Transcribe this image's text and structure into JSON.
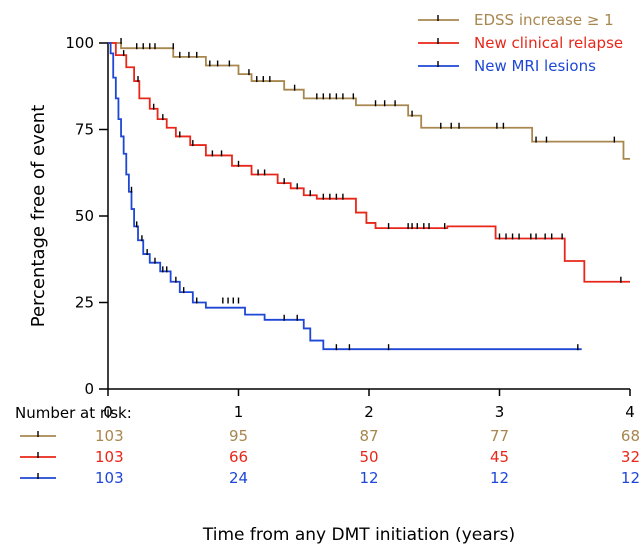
{
  "chart_data": {
    "type": "line",
    "subtype": "kaplan-meier",
    "xlabel": "Time from any DMT initiation (years)",
    "ylabel": "Percentage free of event",
    "xlim": [
      0,
      4
    ],
    "ylim": [
      0,
      100
    ],
    "x_ticks": [
      0,
      1,
      2,
      3,
      4
    ],
    "y_ticks": [
      0,
      25,
      50,
      75,
      100
    ],
    "grid": false,
    "legend_position": "top-right",
    "series": [
      {
        "name": "EDSS increase ≥ 1",
        "color": "#a8874f",
        "steps": [
          [
            0,
            100
          ],
          [
            0.1,
            98.5
          ],
          [
            0.5,
            96
          ],
          [
            0.75,
            93.5
          ],
          [
            1,
            91
          ],
          [
            1.1,
            89
          ],
          [
            1.35,
            86.5
          ],
          [
            1.5,
            84
          ],
          [
            1.9,
            82
          ],
          [
            2.3,
            79
          ],
          [
            2.4,
            75.5
          ],
          [
            3.25,
            71.5
          ],
          [
            3.95,
            66.5
          ],
          [
            4.0,
            66.5
          ]
        ],
        "censors": [
          [
            0.1,
            100
          ],
          [
            0.22,
            98.5
          ],
          [
            0.27,
            98.5
          ],
          [
            0.32,
            98.5
          ],
          [
            0.36,
            98.5
          ],
          [
            0.5,
            98.5
          ],
          [
            0.55,
            96
          ],
          [
            0.62,
            96
          ],
          [
            0.68,
            96
          ],
          [
            0.78,
            93.5
          ],
          [
            0.84,
            93.5
          ],
          [
            0.93,
            93.5
          ],
          [
            1.08,
            91
          ],
          [
            1.14,
            89
          ],
          [
            1.19,
            89
          ],
          [
            1.24,
            89
          ],
          [
            1.43,
            86.5
          ],
          [
            1.6,
            84
          ],
          [
            1.65,
            84
          ],
          [
            1.7,
            84
          ],
          [
            1.75,
            84
          ],
          [
            1.8,
            84
          ],
          [
            1.88,
            84
          ],
          [
            2.05,
            82
          ],
          [
            2.12,
            82
          ],
          [
            2.2,
            82
          ],
          [
            2.33,
            79
          ],
          [
            2.55,
            75.5
          ],
          [
            2.63,
            75.5
          ],
          [
            2.69,
            75.5
          ],
          [
            2.98,
            75.5
          ],
          [
            3.03,
            75.5
          ],
          [
            3.28,
            71.5
          ],
          [
            3.36,
            71.5
          ],
          [
            3.88,
            71.5
          ]
        ]
      },
      {
        "name": "New clinical relapse",
        "color": "#e8271a",
        "steps": [
          [
            0,
            100
          ],
          [
            0.06,
            96.5
          ],
          [
            0.14,
            93
          ],
          [
            0.2,
            89
          ],
          [
            0.24,
            84
          ],
          [
            0.32,
            81
          ],
          [
            0.38,
            78
          ],
          [
            0.45,
            75.5
          ],
          [
            0.52,
            73
          ],
          [
            0.63,
            70.5
          ],
          [
            0.75,
            67.5
          ],
          [
            0.95,
            64.5
          ],
          [
            1.1,
            62
          ],
          [
            1.3,
            59.5
          ],
          [
            1.4,
            58
          ],
          [
            1.5,
            56
          ],
          [
            1.6,
            55
          ],
          [
            1.9,
            51
          ],
          [
            1.98,
            48
          ],
          [
            2.05,
            46.5
          ],
          [
            2.6,
            47
          ],
          [
            2.97,
            43.5
          ],
          [
            3.5,
            43.5
          ],
          [
            3.5,
            37
          ],
          [
            3.65,
            31
          ],
          [
            4.0,
            31
          ]
        ],
        "censors": [
          [
            0.12,
            96.5
          ],
          [
            0.23,
            89
          ],
          [
            0.35,
            81
          ],
          [
            0.42,
            78
          ],
          [
            0.55,
            73
          ],
          [
            0.65,
            70.5
          ],
          [
            0.8,
            67.5
          ],
          [
            0.87,
            67.5
          ],
          [
            1.0,
            64.5
          ],
          [
            1.15,
            62
          ],
          [
            1.2,
            62
          ],
          [
            1.35,
            59.5
          ],
          [
            1.45,
            58
          ],
          [
            1.55,
            56
          ],
          [
            1.65,
            55
          ],
          [
            1.7,
            55
          ],
          [
            1.75,
            55
          ],
          [
            1.8,
            55
          ],
          [
            2.15,
            46.5
          ],
          [
            2.3,
            46.5
          ],
          [
            2.33,
            46.5
          ],
          [
            2.37,
            46.5
          ],
          [
            2.42,
            46.5
          ],
          [
            2.46,
            46.5
          ],
          [
            2.58,
            46.5
          ],
          [
            3.0,
            43.5
          ],
          [
            3.05,
            43.5
          ],
          [
            3.1,
            43.5
          ],
          [
            3.15,
            43.5
          ],
          [
            3.24,
            43.5
          ],
          [
            3.28,
            43.5
          ],
          [
            3.35,
            43.5
          ],
          [
            3.4,
            43.5
          ],
          [
            3.48,
            43.5
          ],
          [
            3.93,
            31
          ]
        ]
      },
      {
        "name": "New MRI lesions",
        "color": "#1f47d6",
        "steps": [
          [
            0,
            100
          ],
          [
            0.02,
            97
          ],
          [
            0.04,
            90
          ],
          [
            0.06,
            84
          ],
          [
            0.08,
            78
          ],
          [
            0.1,
            73
          ],
          [
            0.12,
            68
          ],
          [
            0.14,
            62
          ],
          [
            0.16,
            57
          ],
          [
            0.18,
            52
          ],
          [
            0.2,
            47
          ],
          [
            0.23,
            43
          ],
          [
            0.27,
            39
          ],
          [
            0.32,
            36.5
          ],
          [
            0.4,
            34
          ],
          [
            0.48,
            31
          ],
          [
            0.55,
            28
          ],
          [
            0.65,
            25
          ],
          [
            0.75,
            23.5
          ],
          [
            1.05,
            21.5
          ],
          [
            1.2,
            20
          ],
          [
            1.5,
            17.5
          ],
          [
            1.55,
            14
          ],
          [
            1.65,
            11.5
          ],
          [
            3.63,
            11.5
          ]
        ],
        "censors": [
          [
            0.18,
            57
          ],
          [
            0.22,
            47
          ],
          [
            0.26,
            43
          ],
          [
            0.3,
            39
          ],
          [
            0.36,
            36.5
          ],
          [
            0.42,
            34
          ],
          [
            0.45,
            34
          ],
          [
            0.52,
            31
          ],
          [
            0.58,
            28
          ],
          [
            0.68,
            25
          ],
          [
            0.88,
            25
          ],
          [
            0.92,
            25
          ],
          [
            0.96,
            25
          ],
          [
            1.0,
            25
          ],
          [
            1.35,
            20
          ],
          [
            1.45,
            20
          ],
          [
            1.75,
            11.5
          ],
          [
            1.85,
            11.5
          ],
          [
            2.15,
            11.5
          ],
          [
            3.6,
            11.5
          ]
        ]
      }
    ],
    "risk_table": {
      "title": "Number at risk:",
      "times": [
        0,
        1,
        2,
        3,
        4
      ],
      "rows": [
        {
          "series": "EDSS increase ≥ 1",
          "values": [
            "103",
            "95",
            "87",
            "77",
            "68"
          ]
        },
        {
          "series": "New clinical relapse",
          "values": [
            "103",
            "66",
            "50",
            "45",
            "32"
          ]
        },
        {
          "series": "New MRI lesions",
          "values": [
            "103",
            "24",
            "12",
            "12",
            "12"
          ]
        }
      ]
    }
  }
}
